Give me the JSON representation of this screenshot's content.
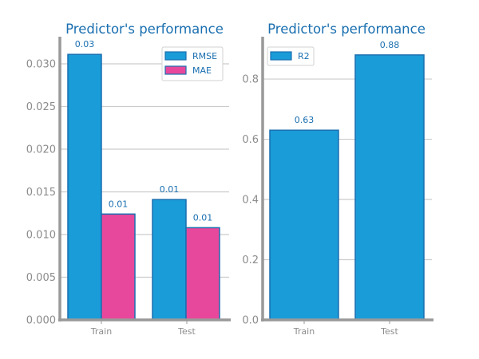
{
  "colors": {
    "text": "#1a6fb0",
    "tick": "#8c8c8c",
    "axis": "#999999",
    "grid": "#cccccc",
    "edge": "#1a6fb0"
  },
  "chart_data": [
    {
      "type": "bar",
      "title": "Predictor's performance",
      "categories": [
        "Train",
        "Test"
      ],
      "series": [
        {
          "name": "RMSE",
          "values": [
            0.0311,
            0.0141
          ],
          "labels": [
            "0.03",
            "0.01"
          ],
          "color": "#1a9cd8"
        },
        {
          "name": "MAE",
          "values": [
            0.0124,
            0.0108
          ],
          "labels": [
            "0.01",
            "0.01"
          ],
          "color": "#e8489b"
        }
      ],
      "ylim": [
        0,
        0.0328
      ],
      "yticks": [
        0,
        0.005,
        0.01,
        0.015,
        0.02,
        0.025,
        0.03
      ],
      "ytick_labels": [
        "0.000",
        "0.005",
        "0.010",
        "0.015",
        "0.020",
        "0.025",
        "0.030"
      ],
      "grid": true,
      "legend": "top-right"
    },
    {
      "type": "bar",
      "title": "Predictor's performance",
      "categories": [
        "Train",
        "Test"
      ],
      "series": [
        {
          "name": "R2",
          "values": [
            0.63,
            0.88
          ],
          "labels": [
            "0.63",
            "0.88"
          ],
          "color": "#1a9cd8"
        }
      ],
      "ylim": [
        0,
        0.93
      ],
      "yticks": [
        0,
        0.2,
        0.4,
        0.6,
        0.8
      ],
      "ytick_labels": [
        "0.0",
        "0.2",
        "0.4",
        "0.6",
        "0.8"
      ],
      "grid": true,
      "legend": "top-left"
    }
  ]
}
